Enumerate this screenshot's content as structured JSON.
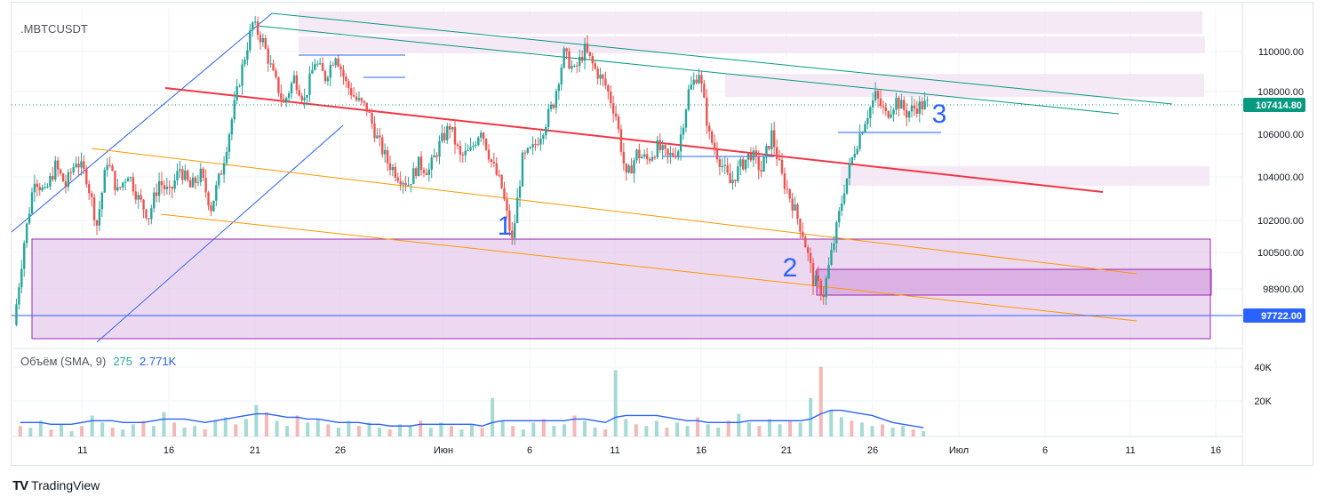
{
  "app": {
    "brand": "TradingView",
    "symbol": ".MBTCUSDT"
  },
  "colors": {
    "up": "#26a69a",
    "down": "#ef5350",
    "grid": "#f0f3fa",
    "channel_blue": "#2962ff",
    "channel_teal": "#089981",
    "trend_red": "#f23645",
    "channel_orange": "#ff9800",
    "zone_fill": "#e1bee7",
    "zone_border": "#9c27b0",
    "sma_line": "#2962ff",
    "price_tag": "#089981",
    "level_tag": "#2962ff"
  },
  "chart_data": {
    "type": "candlestick",
    "title": ".MBTCUSDT",
    "x_labels": [
      "11",
      "16",
      "21",
      "26",
      "Июн",
      "6",
      "11",
      "16",
      "21",
      "26",
      "Июл",
      "6",
      "11",
      "16"
    ],
    "y_labels": [
      "110000.00",
      "108000.00",
      "106000.00",
      "104000.00",
      "102000.00",
      "100500.00",
      "98900.00"
    ],
    "ylim": [
      96700,
      111800
    ],
    "last_price": "107414.80",
    "levels": [
      {
        "label": "97722.00",
        "value": 97722,
        "color": "#2962ff"
      }
    ],
    "key_lows": [
      {
        "label": "1",
        "value": 100500
      },
      {
        "label": "2",
        "value": 98300
      },
      {
        "label": "3",
        "value": 107400
      }
    ],
    "ohlc_path": [
      [
        0,
        97300
      ],
      [
        1,
        101000
      ],
      [
        2,
        104000
      ],
      [
        3,
        103200
      ],
      [
        4,
        104500
      ],
      [
        5,
        103600
      ],
      [
        6,
        104800
      ],
      [
        7,
        104000
      ],
      [
        8,
        101800
      ],
      [
        9,
        104800
      ],
      [
        10,
        103300
      ],
      [
        11,
        104200
      ],
      [
        12,
        103000
      ],
      [
        13,
        102200
      ],
      [
        14,
        103800
      ],
      [
        15,
        103200
      ],
      [
        16,
        104400
      ],
      [
        17,
        103500
      ],
      [
        18,
        104100
      ],
      [
        19,
        102600
      ],
      [
        20,
        104300
      ],
      [
        21,
        106700
      ],
      [
        22,
        109200
      ],
      [
        23,
        111400
      ],
      [
        24,
        110500
      ],
      [
        25,
        108800
      ],
      [
        26,
        107400
      ],
      [
        27,
        108700
      ],
      [
        28,
        107600
      ],
      [
        29,
        109500
      ],
      [
        30,
        108700
      ],
      [
        31,
        109900
      ],
      [
        32,
        108400
      ],
      [
        33,
        107600
      ],
      [
        34,
        107200
      ],
      [
        35,
        105800
      ],
      [
        36,
        104700
      ],
      [
        37,
        104100
      ],
      [
        38,
        103700
      ],
      [
        39,
        104600
      ],
      [
        40,
        104300
      ],
      [
        41,
        105500
      ],
      [
        42,
        106400
      ],
      [
        43,
        104900
      ],
      [
        44,
        105200
      ],
      [
        45,
        106300
      ],
      [
        46,
        104700
      ],
      [
        47,
        103500
      ],
      [
        48,
        101000
      ],
      [
        49,
        104800
      ],
      [
        50,
        105300
      ],
      [
        51,
        106300
      ],
      [
        52,
        107500
      ],
      [
        53,
        109900
      ],
      [
        54,
        109000
      ],
      [
        55,
        110100
      ],
      [
        56,
        109100
      ],
      [
        57,
        108300
      ],
      [
        58,
        106900
      ],
      [
        59,
        103900
      ],
      [
        60,
        105100
      ],
      [
        61,
        104800
      ],
      [
        62,
        105400
      ],
      [
        63,
        104900
      ],
      [
        64,
        105300
      ],
      [
        65,
        108000
      ],
      [
        66,
        109000
      ],
      [
        67,
        105900
      ],
      [
        68,
        104800
      ],
      [
        69,
        103700
      ],
      [
        70,
        104500
      ],
      [
        71,
        105100
      ],
      [
        72,
        104300
      ],
      [
        73,
        106000
      ],
      [
        74,
        104000
      ],
      [
        75,
        102800
      ],
      [
        76,
        101400
      ],
      [
        77,
        99300
      ],
      [
        78,
        98700
      ],
      [
        79,
        101000
      ],
      [
        80,
        103500
      ],
      [
        81,
        105300
      ],
      [
        82,
        106700
      ],
      [
        83,
        107800
      ],
      [
        84,
        106900
      ],
      [
        85,
        107600
      ],
      [
        86,
        107000
      ],
      [
        87,
        107300
      ],
      [
        88,
        107400
      ]
    ],
    "volume": {
      "label": "Объём (SMA, 9)",
      "value_up": "275",
      "value_sma": "2.771K",
      "y_labels": [
        "40K",
        "20K"
      ],
      "ylim": [
        0,
        50000
      ],
      "bars": [
        6,
        5,
        9,
        4,
        7,
        3,
        6,
        12,
        8,
        5,
        4,
        7,
        9,
        6,
        14,
        8,
        5,
        6,
        4,
        9,
        11,
        7,
        10,
        18,
        14,
        9,
        6,
        12,
        8,
        10,
        7,
        5,
        9,
        6,
        8,
        5,
        4,
        7,
        6,
        9,
        5,
        8,
        6,
        4,
        7,
        5,
        22,
        9,
        6,
        4,
        8,
        10,
        6,
        7,
        12,
        9,
        5,
        4,
        38,
        10,
        7,
        6,
        9,
        5,
        8,
        6,
        11,
        7,
        5,
        9,
        13,
        8,
        6,
        10,
        7,
        9,
        8,
        22,
        40,
        15,
        11,
        9,
        8,
        6,
        7,
        5,
        6,
        4,
        3
      ],
      "sma": [
        8,
        8,
        8,
        7,
        7,
        7,
        8,
        9,
        9,
        9,
        8,
        8,
        8,
        9,
        10,
        10,
        10,
        9,
        8,
        9,
        10,
        11,
        12,
        13,
        13,
        12,
        11,
        11,
        10,
        10,
        9,
        8,
        8,
        8,
        7,
        7,
        6,
        6,
        6,
        7,
        7,
        7,
        7,
        7,
        7,
        6,
        8,
        9,
        9,
        9,
        9,
        9,
        9,
        9,
        10,
        10,
        9,
        8,
        11,
        12,
        12,
        12,
        12,
        11,
        10,
        9,
        9,
        8,
        8,
        8,
        8,
        9,
        9,
        9,
        9,
        9,
        9,
        10,
        13,
        15,
        15,
        14,
        13,
        12,
        10,
        8,
        7,
        6,
        5
      ]
    }
  },
  "annotations": {
    "label_1": "1",
    "label_2": "2",
    "label_3": "3"
  }
}
